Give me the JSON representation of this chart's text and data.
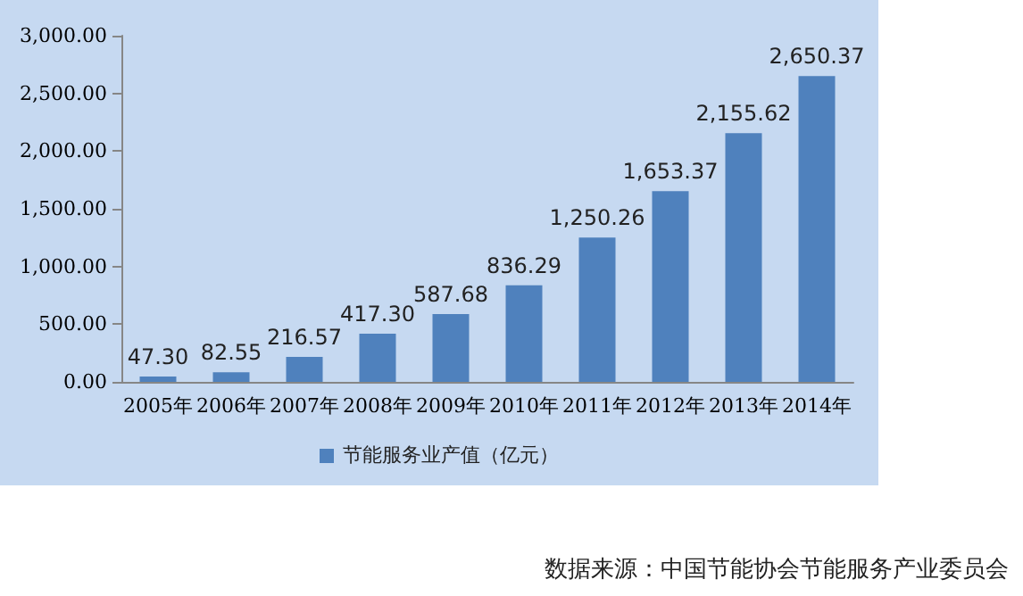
{
  "chart_data": {
    "type": "bar",
    "categories": [
      "2005年",
      "2006年",
      "2007年",
      "2008年",
      "2009年",
      "2010年",
      "2011年",
      "2012年",
      "2013年",
      "2014年"
    ],
    "series": [
      {
        "name": "节能服务业产值（亿元）",
        "color": "#4f81bd",
        "values": [
          47.3,
          82.55,
          216.57,
          417.3,
          587.68,
          836.29,
          1250.26,
          1653.37,
          2155.62,
          2650.37
        ],
        "value_labels": [
          "47.30",
          "82.55",
          "216.57",
          "417.30",
          "587.68",
          "836.29",
          "1,250.26",
          "1,653.37",
          "2,155.62",
          "2,650.37"
        ]
      }
    ],
    "ylim": [
      0,
      3000
    ],
    "yticks": [
      {
        "value": 0,
        "label": "0.00"
      },
      {
        "value": 500,
        "label": "500.00"
      },
      {
        "value": 1000,
        "label": "1,000.00"
      },
      {
        "value": 1500,
        "label": "1,500.00"
      },
      {
        "value": 2000,
        "label": "2,000.00"
      },
      {
        "value": 2500,
        "label": "2,500.00"
      },
      {
        "value": 3000,
        "label": "3,000.00"
      }
    ],
    "grid": false,
    "legend": "bottom",
    "annotations": [
      "数据来源：中国节能协会节能服务产业委员会"
    ]
  }
}
